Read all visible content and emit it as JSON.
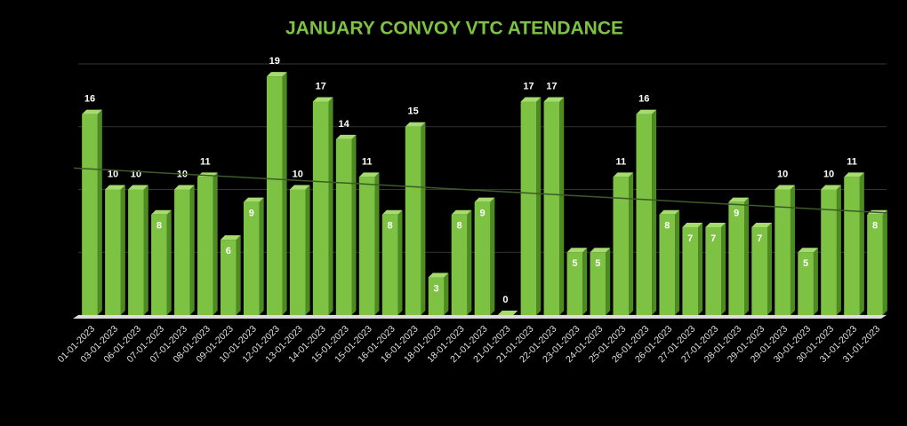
{
  "chart_data": {
    "type": "bar",
    "title": "JANUARY CONVOY VTC ATENDANCE",
    "categories": [
      "01-01-2023",
      "03-01-2023",
      "06-01-2023",
      "07-01-2023",
      "07-01-2023",
      "08-01-2023",
      "09-01-2023",
      "10-01-2023",
      "12-01-2023",
      "13-01-2023",
      "14-01-2023",
      "15-01-2023",
      "15-01-2023",
      "16-01-2023",
      "16-01-2023",
      "18-01-2023",
      "18-01-2023",
      "21-01-2023",
      "21-01-2023",
      "21-01-2023",
      "22-01-2023",
      "23-01-2023",
      "24-01-2023",
      "25-01-2023",
      "26-01-2023",
      "26-01-2023",
      "27-01-2023",
      "27-01-2023",
      "28-01-2023",
      "29-01-2023",
      "29-01-2023",
      "30-01-2023",
      "30-01-2023",
      "31-01-2023",
      "31-01-2023"
    ],
    "values": [
      16,
      10,
      10,
      8,
      10,
      11,
      6,
      9,
      19,
      10,
      17,
      14,
      11,
      8,
      15,
      3,
      8,
      9,
      0,
      17,
      17,
      5,
      5,
      11,
      16,
      8,
      7,
      7,
      9,
      7,
      10,
      5,
      10,
      11,
      8
    ],
    "color": "#7dc242",
    "ylim": [
      0,
      20
    ],
    "yticks": [
      0,
      5,
      10,
      15,
      20
    ],
    "grid": true,
    "trendline": true
  }
}
